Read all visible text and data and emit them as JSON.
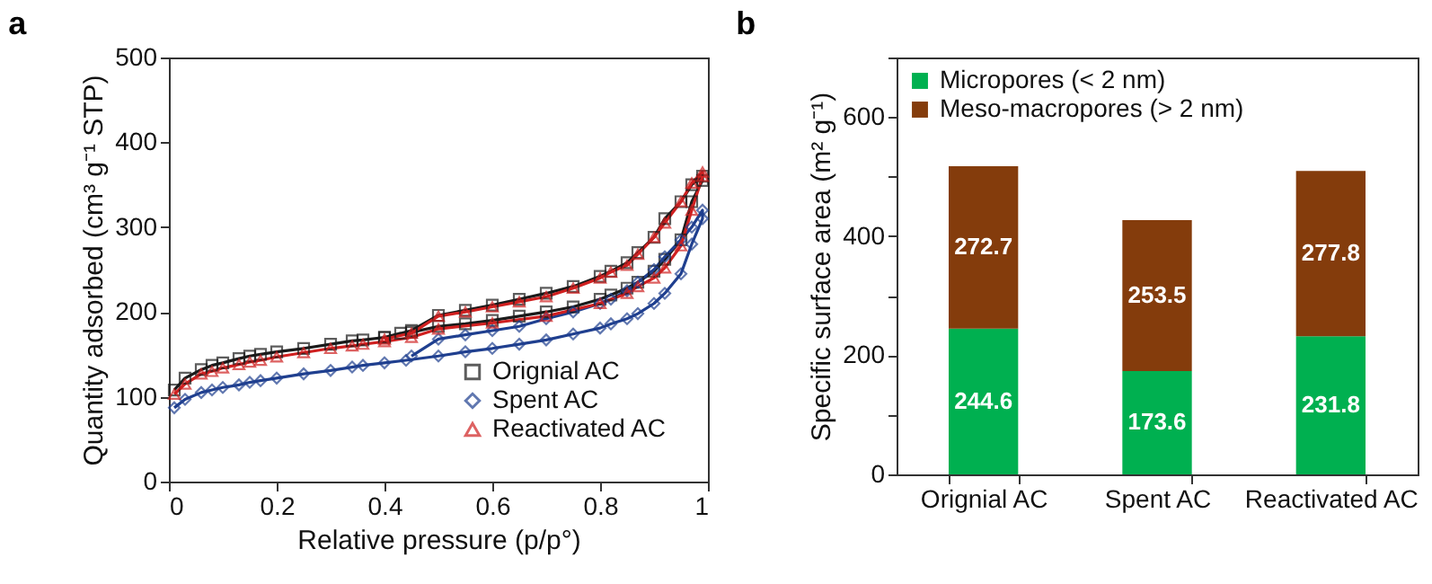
{
  "chart_data": [
    {
      "type": "line",
      "title": "a",
      "xlabel": "Relative pressure (p/p°)",
      "ylabel": "Quantity adsorbed (cm³ g⁻¹ STP)",
      "xlim": [
        0,
        1
      ],
      "ylim": [
        0,
        500
      ],
      "xticks": [
        0,
        0.2,
        0.4,
        0.6,
        0.8,
        1
      ],
      "yticks": [
        0,
        100,
        200,
        300,
        400,
        500
      ],
      "grid": false,
      "legend": "bottom right",
      "line_style": "solid",
      "series": [
        {
          "name": "Orignial AC",
          "color": "#1a1a1a",
          "marker": "square",
          "x": [
            0.01,
            0.03,
            0.06,
            0.08,
            0.1,
            0.13,
            0.15,
            0.17,
            0.2,
            0.25,
            0.3,
            0.34,
            0.36,
            0.4,
            0.43,
            0.45,
            0.5,
            0.55,
            0.6,
            0.65,
            0.7,
            0.75,
            0.8,
            0.82,
            0.85,
            0.87,
            0.9,
            0.92,
            0.95,
            0.97,
            0.99,
            0.99,
            0.97,
            0.95,
            0.92,
            0.9,
            0.87,
            0.85,
            0.82,
            0.8,
            0.75,
            0.7,
            0.65,
            0.6,
            0.55,
            0.5,
            0.45,
            0.4
          ],
          "values": [
            108,
            122,
            132,
            137,
            140,
            145,
            148,
            150,
            153,
            157,
            162,
            166,
            167,
            170,
            175,
            176,
            183,
            186,
            190,
            195,
            200,
            206,
            215,
            220,
            228,
            235,
            248,
            262,
            285,
            330,
            355,
            360,
            350,
            330,
            310,
            288,
            270,
            258,
            248,
            242,
            230,
            222,
            215,
            208,
            202,
            196,
            178,
            170
          ]
        },
        {
          "name": "Spent AC",
          "color": "#1f3f8f",
          "marker": "diamond",
          "x": [
            0.01,
            0.03,
            0.06,
            0.08,
            0.1,
            0.13,
            0.15,
            0.17,
            0.2,
            0.25,
            0.3,
            0.34,
            0.36,
            0.4,
            0.44,
            0.5,
            0.55,
            0.6,
            0.65,
            0.7,
            0.75,
            0.8,
            0.82,
            0.85,
            0.87,
            0.9,
            0.92,
            0.95,
            0.97,
            0.99,
            0.99,
            0.97,
            0.95,
            0.92,
            0.9,
            0.87,
            0.85,
            0.82,
            0.8,
            0.75,
            0.7,
            0.65,
            0.6,
            0.55,
            0.5,
            0.45
          ],
          "values": [
            87,
            97,
            105,
            108,
            111,
            114,
            117,
            119,
            122,
            127,
            131,
            135,
            137,
            140,
            143,
            148,
            153,
            157,
            162,
            167,
            174,
            181,
            186,
            192,
            198,
            210,
            222,
            245,
            280,
            310,
            320,
            300,
            285,
            265,
            250,
            235,
            225,
            215,
            210,
            200,
            192,
            183,
            178,
            173,
            168,
            148
          ]
        },
        {
          "name": "Reactivated AC",
          "color": "#d02020",
          "marker": "triangle",
          "x": [
            0.01,
            0.03,
            0.06,
            0.08,
            0.1,
            0.13,
            0.15,
            0.17,
            0.2,
            0.25,
            0.3,
            0.34,
            0.36,
            0.4,
            0.45,
            0.5,
            0.6,
            0.7,
            0.8,
            0.85,
            0.87,
            0.9,
            0.92,
            0.95,
            0.97,
            0.99,
            0.99,
            0.97,
            0.95,
            0.92,
            0.9,
            0.87,
            0.85,
            0.82,
            0.8,
            0.75,
            0.7,
            0.65,
            0.6,
            0.55,
            0.5,
            0.45,
            0.4
          ],
          "values": [
            103,
            115,
            127,
            130,
            134,
            138,
            141,
            143,
            147,
            152,
            157,
            160,
            162,
            165,
            170,
            180,
            187,
            195,
            210,
            222,
            230,
            240,
            252,
            278,
            320,
            360,
            365,
            352,
            330,
            305,
            288,
            268,
            255,
            247,
            240,
            228,
            218,
            212,
            206,
            200,
            195,
            175,
            168
          ]
        }
      ]
    },
    {
      "type": "bar",
      "title": "b",
      "ylabel": "Specific surface area (m² g⁻¹)",
      "categories": [
        "Orignial AC",
        "Spent AC",
        "Reactivated AC"
      ],
      "ylim": [
        0,
        700
      ],
      "yticks": [
        0,
        {
          "value": 100,
          "label": null
        },
        200,
        {
          "value": 300,
          "label": null
        },
        400,
        {
          "value": 500,
          "label": null
        },
        600,
        {
          "value": 700,
          "label": null
        }
      ],
      "stacked": true,
      "data_labels": true,
      "grid": false,
      "legend": "top left",
      "series": [
        {
          "name": "Micropores (< 2 nm)",
          "color": "#00b050",
          "values": [
            244.6,
            173.6,
            231.8
          ]
        },
        {
          "name": "Meso-macropores (> 2 nm)",
          "color": "#843c0c",
          "values": [
            272.7,
            253.5,
            277.8
          ]
        }
      ]
    }
  ]
}
